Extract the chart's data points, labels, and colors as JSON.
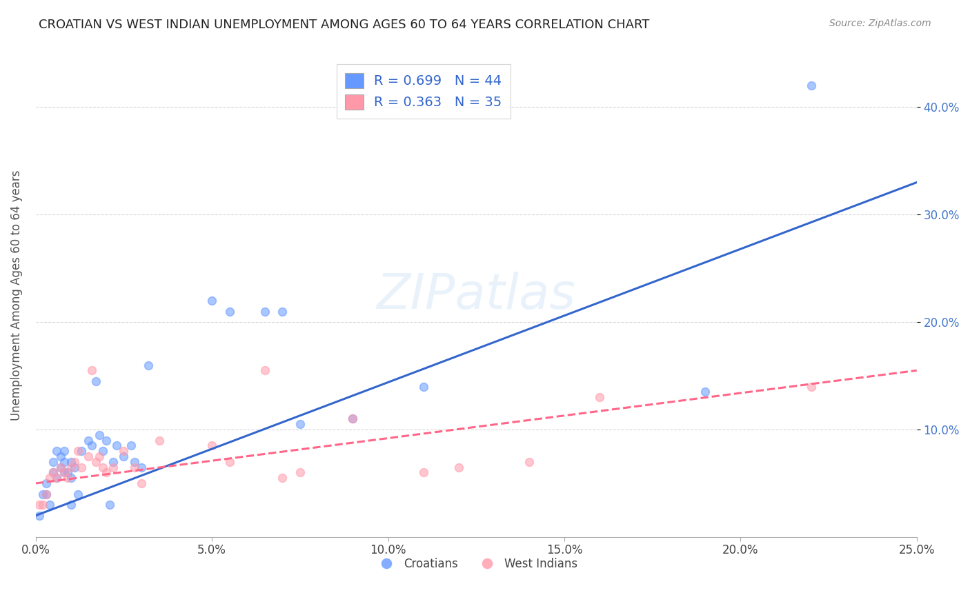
{
  "title": "CROATIAN VS WEST INDIAN UNEMPLOYMENT AMONG AGES 60 TO 64 YEARS CORRELATION CHART",
  "source": "Source: ZipAtlas.com",
  "xlabel_bottom": "",
  "ylabel": "Unemployment Among Ages 60 to 64 years",
  "watermark": "ZIPatlas",
  "xlim": [
    0.0,
    0.25
  ],
  "ylim": [
    0.0,
    0.45
  ],
  "xtick_labels": [
    "0.0%",
    "5.0%",
    "10.0%",
    "15.0%",
    "20.0%",
    "25.0%"
  ],
  "xtick_values": [
    0.0,
    0.05,
    0.1,
    0.15,
    0.2,
    0.25
  ],
  "ytick_labels": [
    "10.0%",
    "20.0%",
    "30.0%",
    "40.0%"
  ],
  "ytick_values": [
    0.1,
    0.2,
    0.3,
    0.4
  ],
  "croatian_R": 0.699,
  "croatian_N": 44,
  "west_indian_R": 0.363,
  "west_indian_N": 35,
  "croatian_color": "#6699ff",
  "croatian_line_color": "#3366cc",
  "west_indian_color": "#ff99aa",
  "west_indian_line_color": "#ff6688",
  "legend_box_color": "#6699ff",
  "legend_box_color2": "#ff99aa",
  "croatians_x": [
    0.001,
    0.002,
    0.003,
    0.003,
    0.004,
    0.005,
    0.005,
    0.006,
    0.006,
    0.007,
    0.007,
    0.008,
    0.008,
    0.008,
    0.009,
    0.01,
    0.01,
    0.01,
    0.011,
    0.012,
    0.013,
    0.015,
    0.016,
    0.017,
    0.018,
    0.019,
    0.02,
    0.021,
    0.022,
    0.023,
    0.025,
    0.027,
    0.028,
    0.03,
    0.032,
    0.05,
    0.055,
    0.065,
    0.07,
    0.075,
    0.09,
    0.11,
    0.19,
    0.22
  ],
  "croatians_y": [
    0.02,
    0.04,
    0.05,
    0.04,
    0.03,
    0.06,
    0.07,
    0.055,
    0.08,
    0.065,
    0.075,
    0.06,
    0.07,
    0.08,
    0.06,
    0.055,
    0.07,
    0.03,
    0.065,
    0.04,
    0.08,
    0.09,
    0.085,
    0.145,
    0.095,
    0.08,
    0.09,
    0.03,
    0.07,
    0.085,
    0.075,
    0.085,
    0.07,
    0.065,
    0.16,
    0.22,
    0.21,
    0.21,
    0.21,
    0.105,
    0.11,
    0.14,
    0.135,
    0.42
  ],
  "west_indians_x": [
    0.001,
    0.002,
    0.003,
    0.004,
    0.005,
    0.006,
    0.007,
    0.008,
    0.009,
    0.01,
    0.011,
    0.012,
    0.013,
    0.015,
    0.016,
    0.017,
    0.018,
    0.019,
    0.02,
    0.022,
    0.025,
    0.028,
    0.03,
    0.035,
    0.05,
    0.055,
    0.065,
    0.07,
    0.075,
    0.09,
    0.11,
    0.12,
    0.14,
    0.16,
    0.22
  ],
  "west_indians_y": [
    0.03,
    0.03,
    0.04,
    0.055,
    0.06,
    0.055,
    0.065,
    0.06,
    0.055,
    0.065,
    0.07,
    0.08,
    0.065,
    0.075,
    0.155,
    0.07,
    0.075,
    0.065,
    0.06,
    0.065,
    0.08,
    0.065,
    0.05,
    0.09,
    0.085,
    0.07,
    0.155,
    0.055,
    0.06,
    0.11,
    0.06,
    0.065,
    0.07,
    0.13,
    0.14
  ],
  "croatian_trend_x": [
    0.0,
    0.25
  ],
  "croatian_trend_y": [
    0.02,
    0.33
  ],
  "west_indian_trend_x": [
    0.0,
    0.25
  ],
  "west_indian_trend_y": [
    0.05,
    0.155
  ],
  "background_color": "#ffffff",
  "grid_color": "#cccccc",
  "title_color": "#222222",
  "axis_label_color": "#555555",
  "legend_label_color": "#3366cc",
  "marker_size": 12,
  "marker_alpha": 0.55,
  "marker_linewidth": 1.2
}
